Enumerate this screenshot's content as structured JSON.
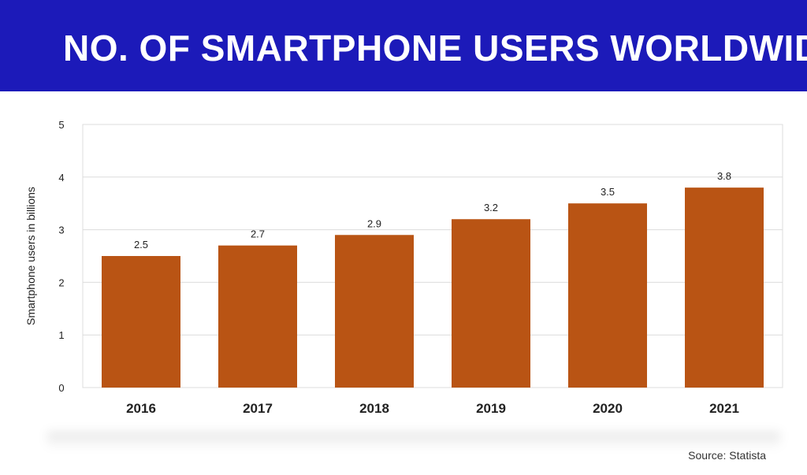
{
  "header": {
    "title": "NO. OF SMARTPHONE USERS WORLDWIDE"
  },
  "footer": {
    "source": "Source: Statista"
  },
  "colors": {
    "header_bg": "#1c1ab9",
    "bar": "#b95414",
    "grid": "#dcdcdc"
  },
  "chart_data": {
    "type": "bar",
    "title": "NO. OF SMARTPHONE USERS WORLDWIDE",
    "categories": [
      "2016",
      "2017",
      "2018",
      "2019",
      "2020",
      "2021"
    ],
    "values": [
      2.5,
      2.7,
      2.9,
      3.2,
      3.5,
      3.8
    ],
    "data_labels": [
      "2.5",
      "2.7",
      "2.9",
      "3.2",
      "3.5",
      "3.8"
    ],
    "xlabel": "",
    "ylabel": "Smartphone users in billions",
    "ylim": [
      0,
      5
    ],
    "yticks": [
      "0",
      "1",
      "2",
      "3",
      "4",
      "5"
    ],
    "grid": true
  }
}
